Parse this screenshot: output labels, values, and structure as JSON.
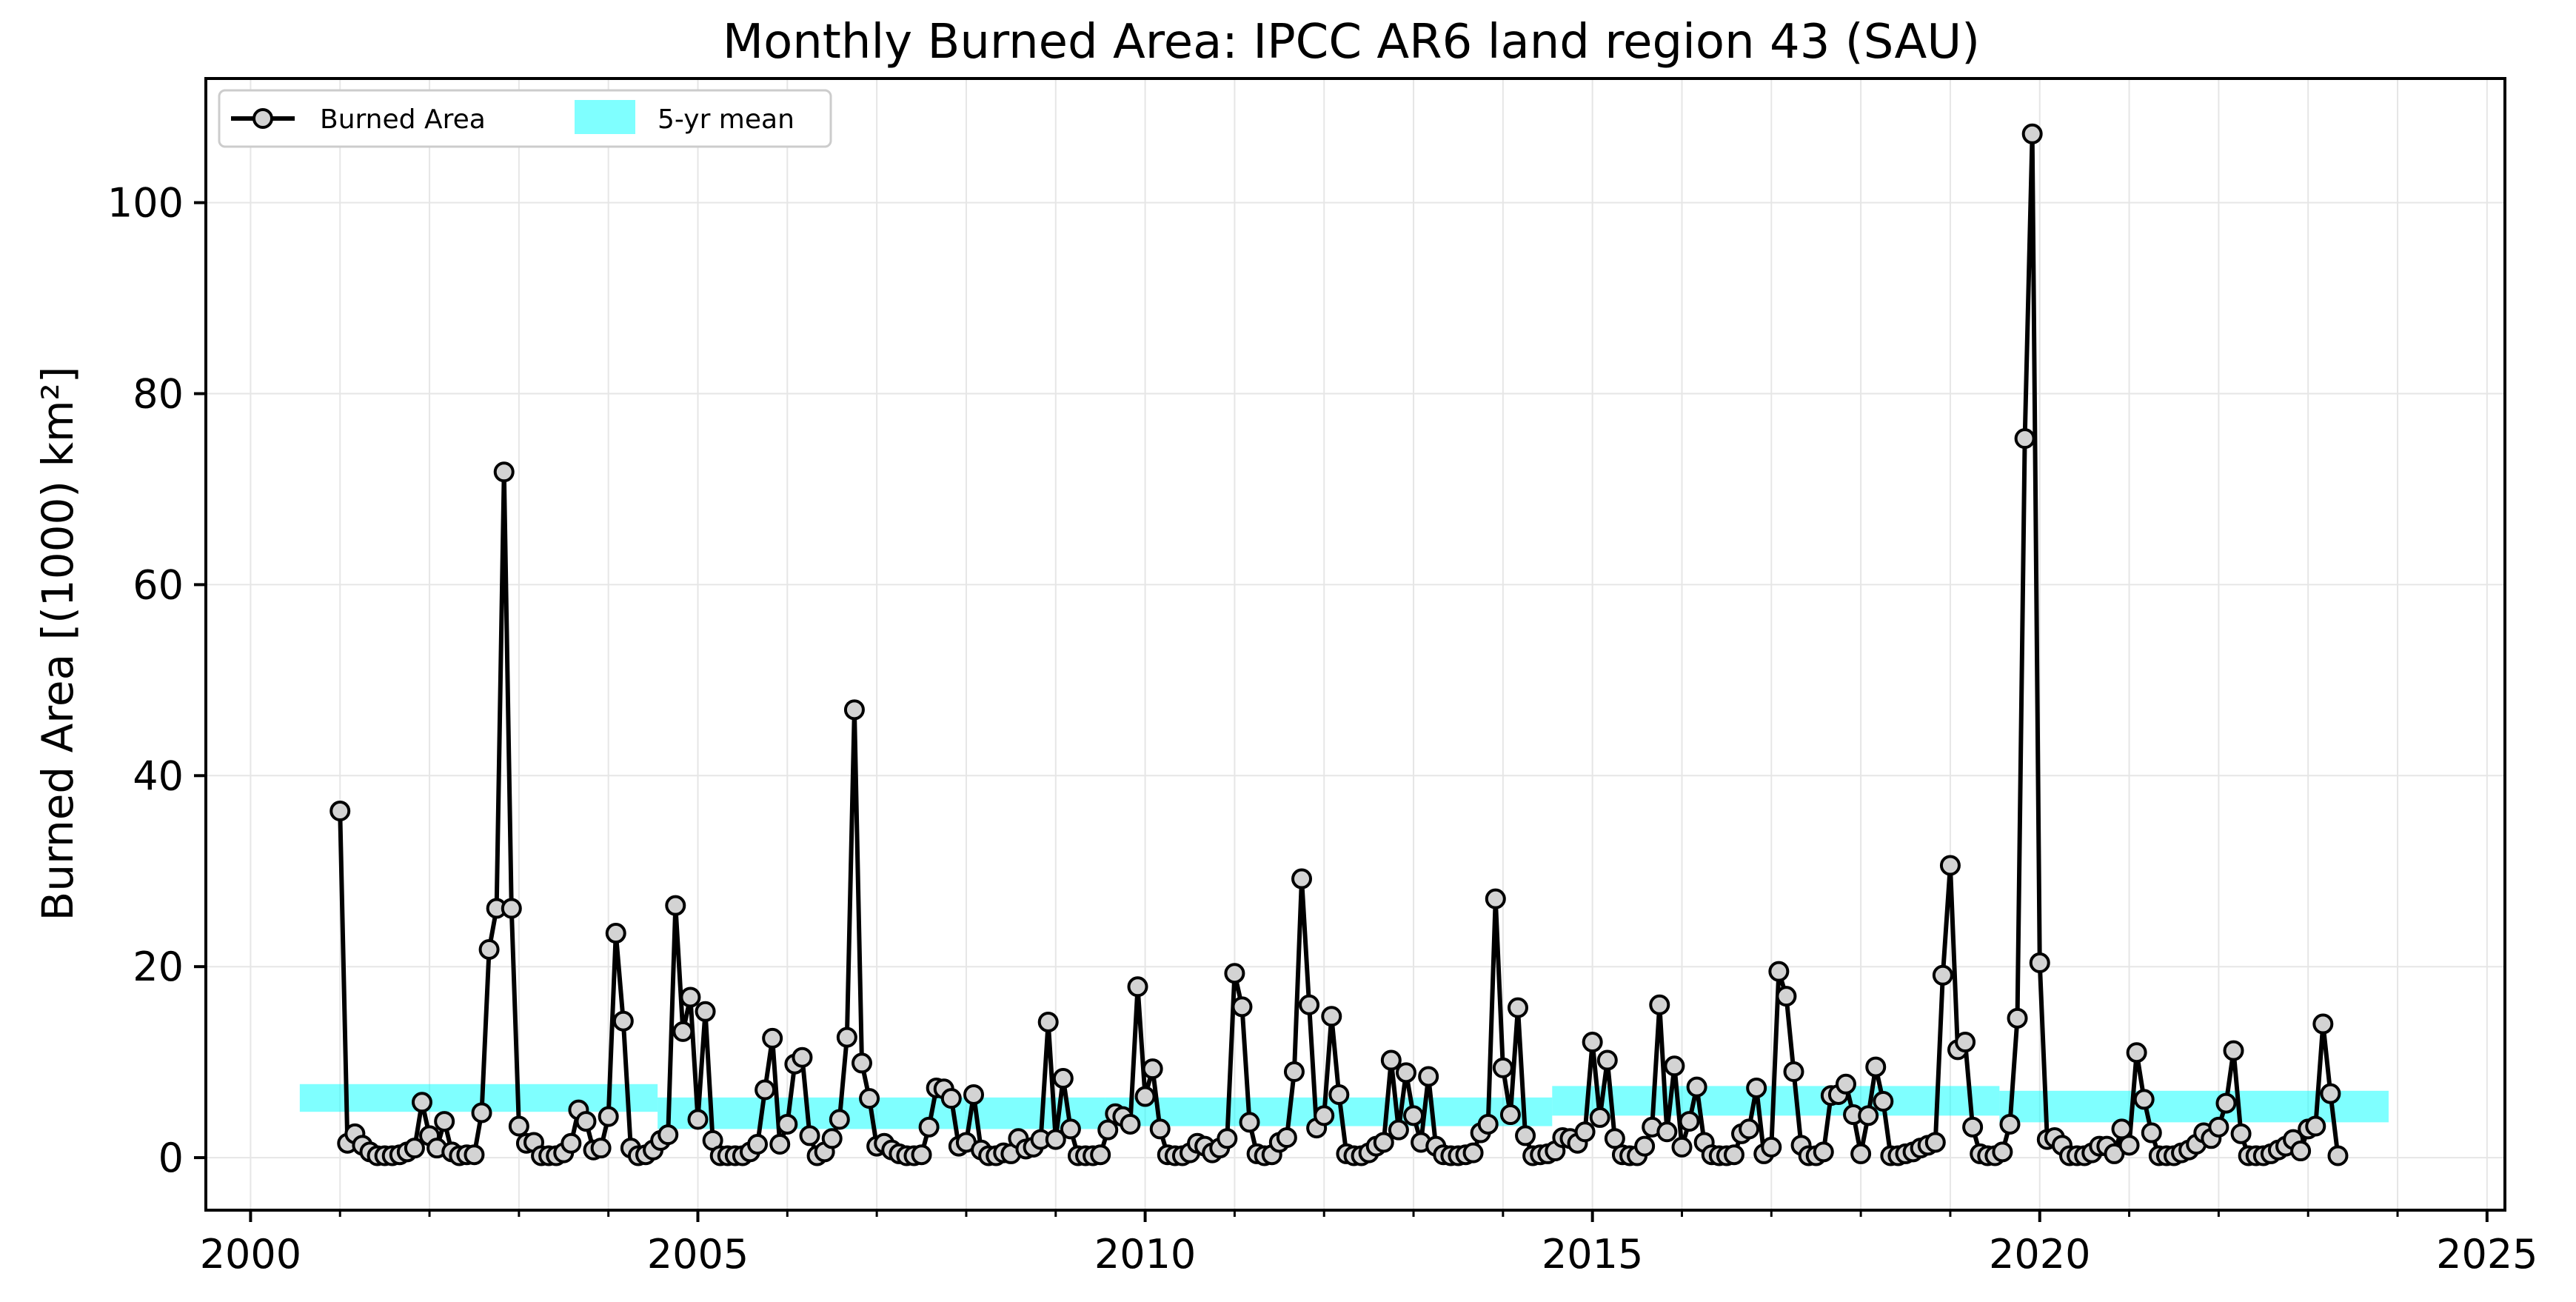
{
  "chart_data": {
    "type": "line",
    "title": "Monthly Burned Area: IPCC AR6 land region 43 (SAU)",
    "ylabel": "Burned Area [(1000) km²]",
    "xlabel": "",
    "xlim": [
      1999.5,
      2025.2
    ],
    "ylim": [
      -5.5,
      113
    ],
    "x_ticks": [
      2000,
      2005,
      2010,
      2015,
      2020,
      2025
    ],
    "y_ticks": [
      0,
      20,
      40,
      60,
      80,
      100
    ],
    "grid": true,
    "legend_position": "top-left",
    "legend": [
      "Burned Area",
      "5-yr mean"
    ],
    "series": [
      {
        "name": "Burned Area",
        "style": "line-with-circle-markers",
        "color": "#000000",
        "marker_fill": "#d3d3d3",
        "start": "2001-01",
        "interval": "monthly",
        "values": [
          36.3,
          1.5,
          2.5,
          1.3,
          0.6,
          0.2,
          0.2,
          0.2,
          0.3,
          0.6,
          1.0,
          5.8,
          2.3,
          1.0,
          3.8,
          0.6,
          0.2,
          0.3,
          0.3,
          4.7,
          21.8,
          26.1,
          71.8,
          26.1,
          3.3,
          1.5,
          1.6,
          0.2,
          0.2,
          0.2,
          0.5,
          1.5,
          5.0,
          3.8,
          0.8,
          1.0,
          4.3,
          23.5,
          14.3,
          1.0,
          0.2,
          0.3,
          0.8,
          1.8,
          2.4,
          26.4,
          13.2,
          16.8,
          4.0,
          15.3,
          1.8,
          0.2,
          0.2,
          0.2,
          0.2,
          0.6,
          1.4,
          7.1,
          12.5,
          1.4,
          3.5,
          9.8,
          10.5,
          2.3,
          0.2,
          0.6,
          2.0,
          4.0,
          12.6,
          46.9,
          9.9,
          6.2,
          1.2,
          1.5,
          0.8,
          0.4,
          0.2,
          0.2,
          0.3,
          3.2,
          7.3,
          7.2,
          6.2,
          1.2,
          1.6,
          6.6,
          0.8,
          0.2,
          0.2,
          0.5,
          0.4,
          2.0,
          0.9,
          1.1,
          1.9,
          14.2,
          1.9,
          8.3,
          3.0,
          0.2,
          0.2,
          0.2,
          0.3,
          2.9,
          4.6,
          4.3,
          3.5,
          17.9,
          6.4,
          9.3,
          3.0,
          0.3,
          0.2,
          0.2,
          0.5,
          1.5,
          1.2,
          0.5,
          1.0,
          2.0,
          19.3,
          15.8,
          3.7,
          0.4,
          0.2,
          0.3,
          1.6,
          2.1,
          9.0,
          29.2,
          16.0,
          3.1,
          4.4,
          14.8,
          6.6,
          0.4,
          0.2,
          0.2,
          0.5,
          1.2,
          1.6,
          10.2,
          2.9,
          8.9,
          4.4,
          1.6,
          8.5,
          1.2,
          0.3,
          0.2,
          0.2,
          0.3,
          0.5,
          2.6,
          3.5,
          27.1,
          9.4,
          4.5,
          15.7,
          2.3,
          0.2,
          0.3,
          0.4,
          0.7,
          2.1,
          2.0,
          1.5,
          2.7,
          12.1,
          4.2,
          10.2,
          2.0,
          0.3,
          0.2,
          0.2,
          1.2,
          3.2,
          16.0,
          2.7,
          9.6,
          1.1,
          3.8,
          7.4,
          1.6,
          0.3,
          0.2,
          0.2,
          0.3,
          2.5,
          3.0,
          7.3,
          0.4,
          1.1,
          19.5,
          16.9,
          9.0,
          1.3,
          0.2,
          0.2,
          0.6,
          6.5,
          6.6,
          7.7,
          4.5,
          0.4,
          4.4,
          9.5,
          5.9,
          0.2,
          0.2,
          0.4,
          0.6,
          1.0,
          1.3,
          1.6,
          19.1,
          30.6,
          11.3,
          12.1,
          3.2,
          0.4,
          0.2,
          0.2,
          0.6,
          3.5,
          14.6,
          75.3,
          107.2,
          20.4,
          1.9,
          2.1,
          1.3,
          0.2,
          0.2,
          0.2,
          0.5,
          1.2,
          1.2,
          0.4,
          3.0,
          1.3,
          11.0,
          6.1,
          2.6,
          0.2,
          0.2,
          0.2,
          0.5,
          0.8,
          1.4,
          2.6,
          2.0,
          3.2,
          5.7,
          11.2,
          2.5,
          0.2,
          0.2,
          0.2,
          0.4,
          0.8,
          1.2,
          1.9,
          0.7,
          3.0,
          3.3,
          14.0,
          6.7,
          0.2
        ]
      },
      {
        "name": "5-yr mean",
        "style": "band",
        "color": "#00ffff",
        "opacity": 0.5,
        "segments": [
          {
            "x_start": 2000.55,
            "x_end": 2004.55,
            "low": 4.8,
            "high": 7.7
          },
          {
            "x_start": 2004.55,
            "x_end": 2009.55,
            "low": 3.0,
            "high": 6.3
          },
          {
            "x_start": 2009.55,
            "x_end": 2014.55,
            "low": 3.3,
            "high": 6.3
          },
          {
            "x_start": 2014.55,
            "x_end": 2019.55,
            "low": 4.4,
            "high": 7.5
          },
          {
            "x_start": 2019.55,
            "x_end": 2023.9,
            "low": 3.7,
            "high": 7.0
          }
        ]
      }
    ]
  }
}
